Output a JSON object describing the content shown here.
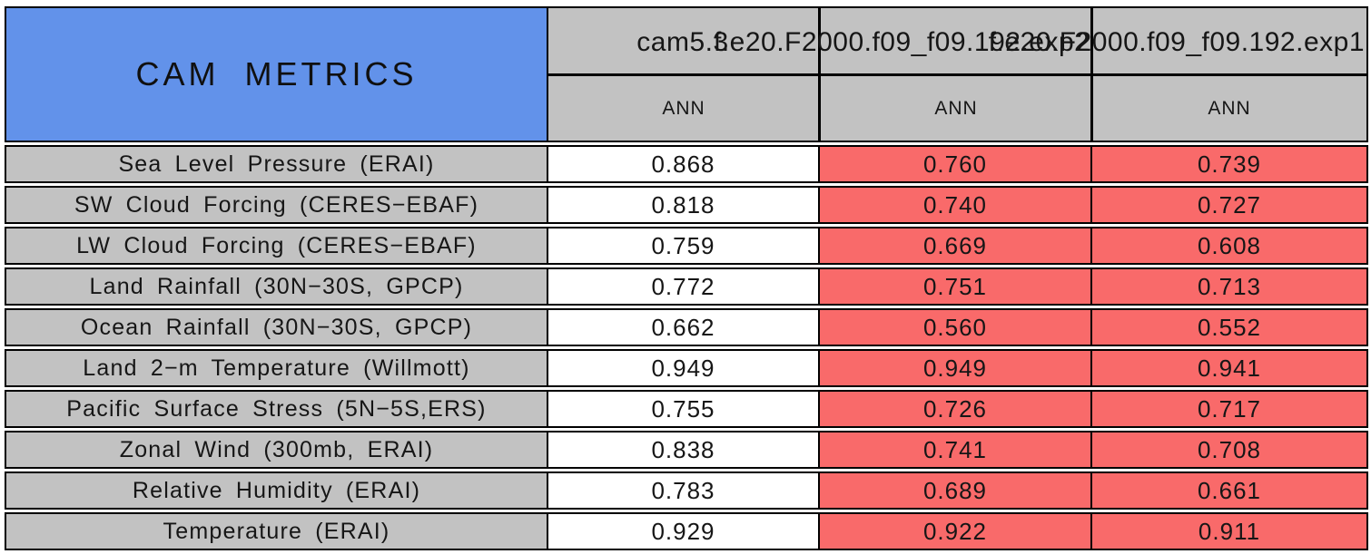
{
  "header": {
    "title": "CAM METRICS",
    "model_columns": [
      "cam5.3",
      "f.e20.F2000.f09_f09.192.exp2",
      "f.e20.F2000.f09_f09.192.exp1"
    ],
    "season_labels": [
      "ANN",
      "ANN",
      "ANN"
    ]
  },
  "metrics": {
    "rows": [
      {
        "label": "Sea Level Pressure (ERAI)",
        "values": [
          "0.868",
          "0.760",
          "0.739"
        ]
      },
      {
        "label": "SW Cloud Forcing (CERES−EBAF)",
        "values": [
          "0.818",
          "0.740",
          "0.727"
        ]
      },
      {
        "label": "LW Cloud Forcing (CERES−EBAF)",
        "values": [
          "0.759",
          "0.669",
          "0.608"
        ]
      },
      {
        "label": "Land Rainfall (30N−30S, GPCP)",
        "values": [
          "0.772",
          "0.751",
          "0.713"
        ]
      },
      {
        "label": "Ocean Rainfall (30N−30S, GPCP)",
        "values": [
          "0.662",
          "0.560",
          "0.552"
        ]
      },
      {
        "label": "Land 2−m Temperature (Willmott)",
        "values": [
          "0.949",
          "0.949",
          "0.941"
        ]
      },
      {
        "label": "Pacific Surface Stress (5N−5S,ERS)",
        "values": [
          "0.755",
          "0.726",
          "0.717"
        ]
      },
      {
        "label": "Zonal Wind (300mb, ERAI)",
        "values": [
          "0.838",
          "0.741",
          "0.708"
        ]
      },
      {
        "label": "Relative Humidity (ERAI)",
        "values": [
          "0.783",
          "0.689",
          "0.661"
        ]
      },
      {
        "label": "Temperature (ERAI)",
        "values": [
          "0.929",
          "0.922",
          "0.911"
        ]
      }
    ]
  },
  "colors": {
    "title_cell_blue": "#6292EA",
    "header_gray": "#C2C2C2",
    "control_column_white": "#FFFFFF",
    "highlight_red": "#F96A6A",
    "border_black": "#000000"
  },
  "chart_data": {
    "type": "table",
    "title": "CAM METRICS",
    "season": "ANN",
    "columns": [
      "cam5.3",
      "f.e20.F2000.f09_f09.192.exp2",
      "f.e20.F2000.f09_f09.192.exp1"
    ],
    "row_labels": [
      "Sea Level Pressure (ERAI)",
      "SW Cloud Forcing (CERES−EBAF)",
      "LW Cloud Forcing (CERES−EBAF)",
      "Land Rainfall (30N−30S, GPCP)",
      "Ocean Rainfall (30N−30S, GPCP)",
      "Land 2−m Temperature (Willmott)",
      "Pacific Surface Stress (5N−5S,ERS)",
      "Zonal Wind (300mb, ERAI)",
      "Relative Humidity (ERAI)",
      "Temperature (ERAI)"
    ],
    "series": [
      {
        "name": "cam5.3",
        "cell_color": "white",
        "values": [
          0.868,
          0.818,
          0.759,
          0.772,
          0.662,
          0.949,
          0.755,
          0.838,
          0.783,
          0.929
        ]
      },
      {
        "name": "f.e20.F2000.f09_f09.192.exp2",
        "cell_color": "red",
        "values": [
          0.76,
          0.74,
          0.669,
          0.751,
          0.56,
          0.949,
          0.726,
          0.741,
          0.689,
          0.922
        ]
      },
      {
        "name": "f.e20.F2000.f09_f09.192.exp1",
        "cell_color": "red",
        "values": [
          0.739,
          0.727,
          0.608,
          0.713,
          0.552,
          0.941,
          0.717,
          0.708,
          0.661,
          0.911
        ]
      }
    ]
  }
}
